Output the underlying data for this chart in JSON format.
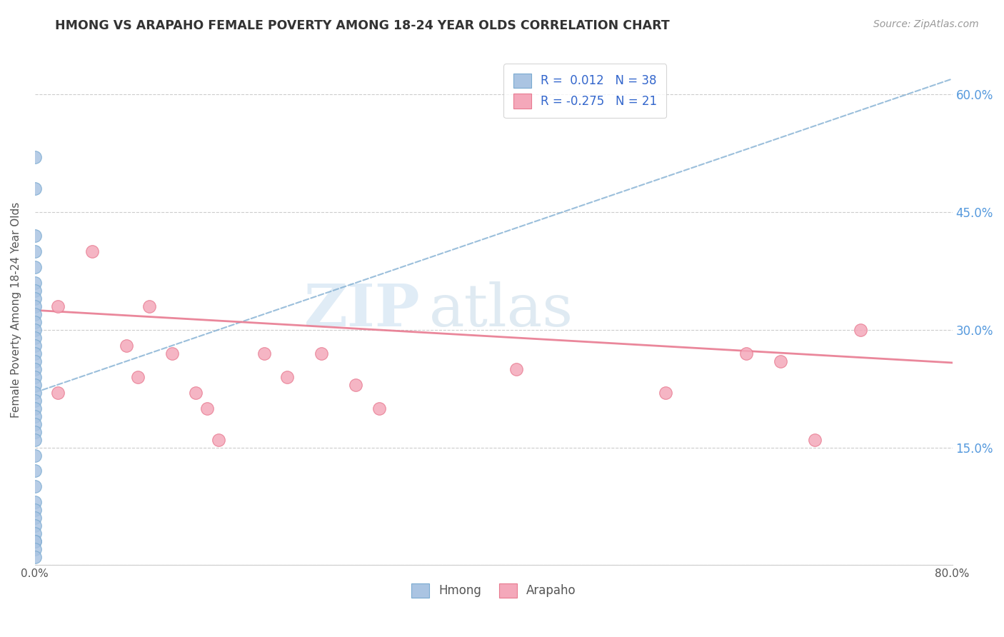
{
  "title": "HMONG VS ARAPAHO FEMALE POVERTY AMONG 18-24 YEAR OLDS CORRELATION CHART",
  "source": "Source: ZipAtlas.com",
  "ylabel": "Female Poverty Among 18-24 Year Olds",
  "xlim": [
    0.0,
    0.8
  ],
  "ylim": [
    0.0,
    0.65
  ],
  "ytick_positions": [
    0.0,
    0.15,
    0.3,
    0.45,
    0.6
  ],
  "yticklabels_right": [
    "",
    "15.0%",
    "30.0%",
    "45.0%",
    "60.0%"
  ],
  "watermark_zip": "ZIP",
  "watermark_atlas": "atlas",
  "legend_r_hmong": "0.012",
  "legend_n_hmong": "38",
  "legend_r_arapaho": "-0.275",
  "legend_n_arapaho": "21",
  "hmong_color": "#aac4e2",
  "arapaho_color": "#f4a8ba",
  "hmong_edge_color": "#7aaad0",
  "arapaho_edge_color": "#e87a90",
  "hmong_trend_color": "#7aaad0",
  "arapaho_trend_color": "#e87a90",
  "background_color": "#ffffff",
  "grid_color": "#cccccc",
  "title_color": "#333333",
  "source_color": "#999999",
  "axis_label_color": "#555555",
  "tick_color": "#5599dd",
  "legend_text_color": "#3366cc",
  "hmong_x": [
    0.0,
    0.0,
    0.0,
    0.0,
    0.0,
    0.0,
    0.0,
    0.0,
    0.0,
    0.0,
    0.0,
    0.0,
    0.0,
    0.0,
    0.0,
    0.0,
    0.0,
    0.0,
    0.0,
    0.0,
    0.0,
    0.0,
    0.0,
    0.0,
    0.0,
    0.0,
    0.0,
    0.0,
    0.0,
    0.0,
    0.0,
    0.0,
    0.0,
    0.0,
    0.0,
    0.0,
    0.0,
    0.0
  ],
  "hmong_y": [
    0.52,
    0.48,
    0.42,
    0.4,
    0.38,
    0.36,
    0.35,
    0.34,
    0.33,
    0.32,
    0.31,
    0.3,
    0.29,
    0.28,
    0.27,
    0.26,
    0.25,
    0.24,
    0.23,
    0.22,
    0.21,
    0.2,
    0.19,
    0.18,
    0.17,
    0.16,
    0.14,
    0.12,
    0.1,
    0.08,
    0.07,
    0.06,
    0.05,
    0.04,
    0.03,
    0.03,
    0.02,
    0.01
  ],
  "arapaho_x": [
    0.02,
    0.02,
    0.05,
    0.08,
    0.09,
    0.1,
    0.12,
    0.14,
    0.15,
    0.16,
    0.2,
    0.22,
    0.25,
    0.28,
    0.3,
    0.42,
    0.55,
    0.62,
    0.65,
    0.68,
    0.72
  ],
  "arapaho_y": [
    0.33,
    0.22,
    0.4,
    0.28,
    0.24,
    0.33,
    0.27,
    0.22,
    0.2,
    0.16,
    0.27,
    0.24,
    0.27,
    0.23,
    0.2,
    0.25,
    0.22,
    0.27,
    0.26,
    0.16,
    0.3
  ],
  "hmong_trend_start_x": 0.0,
  "hmong_trend_start_y": 0.22,
  "hmong_trend_end_x": 0.8,
  "hmong_trend_end_y": 0.62,
  "arapaho_trend_start_x": 0.0,
  "arapaho_trend_start_y": 0.325,
  "arapaho_trend_end_x": 0.8,
  "arapaho_trend_end_y": 0.258
}
